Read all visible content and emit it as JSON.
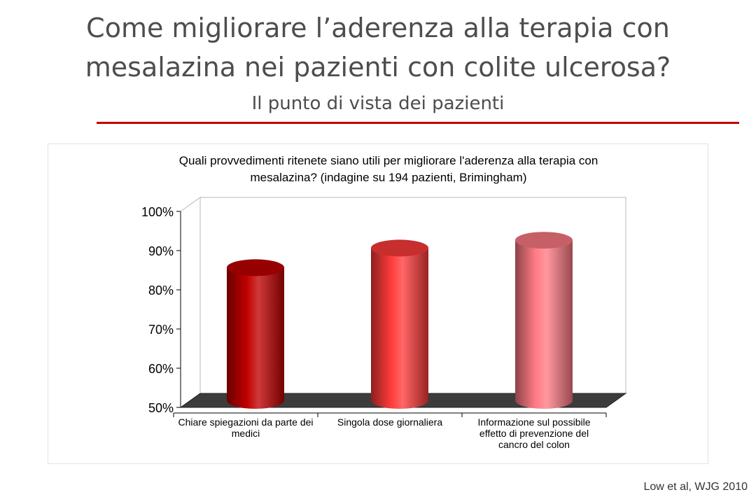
{
  "slide": {
    "title_line1": "Come migliorare l’aderenza alla terapia con",
    "title_line2": "mesalazina nei pazienti con colite ulcerosa?",
    "subtitle": "Il punto di vista dei pazienti",
    "source": "Low et al, WJG 2010"
  },
  "chart_data": {
    "type": "bar",
    "title": "Quali provvedimenti ritenete siano utili per migliorare l'aderenza alla terapia con mesalazina? (indagine su 194 pazienti, Brimingham)",
    "title_lines": [
      "Quali provvedimenti ritenete siano utili per migliorare l'aderenza alla terapia con",
      "mesalazina? (indagine su 194 pazienti, Brimingham)"
    ],
    "categories": [
      "Chiare spiegazioni da parte dei medici",
      "Singola dose giornaliera",
      "Informazione sul possibile effetto di prevenzione del cancro del colon"
    ],
    "category_lines": [
      [
        "Chiare spiegazioni da parte dei",
        "medici"
      ],
      [
        "Singola dose giornaliera"
      ],
      [
        "Informazione sul possibile",
        "effetto di prevenzione del",
        "cancro del colon"
      ]
    ],
    "values": [
      86,
      91,
      93
    ],
    "ylim": [
      50,
      100
    ],
    "yticks": [
      "50%",
      "60%",
      "70%",
      "80%",
      "90%",
      "100%"
    ],
    "grid": false,
    "bar_colors": [
      "#c00000",
      "#ff3b3b",
      "#ff7a84"
    ],
    "floor_color": "#3c3c3c",
    "xlabel": "",
    "ylabel": ""
  }
}
